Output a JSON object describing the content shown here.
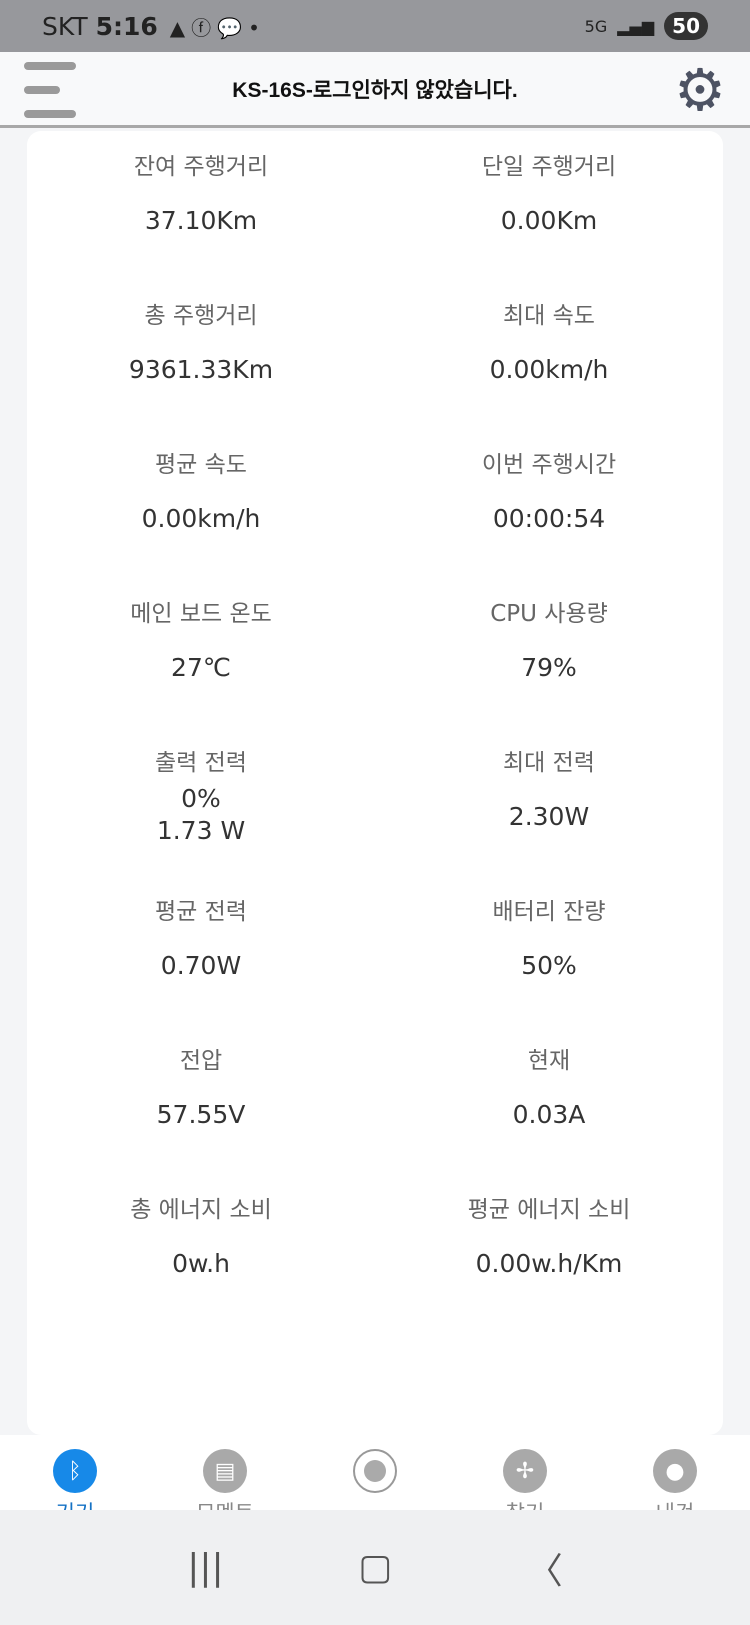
{
  "status_bar": {
    "carrier": "SKT",
    "time": "5:16",
    "network": "5G",
    "battery": "50"
  },
  "header": {
    "title": "KS-16S-로그인하지 않았습니다."
  },
  "stats": [
    {
      "label": "잔여 주행거리",
      "value": "37.10Km"
    },
    {
      "label": "단일 주행거리",
      "value": "0.00Km"
    },
    {
      "label": "총 주행거리",
      "value": "9361.33Km"
    },
    {
      "label": "최대 속도",
      "value": "0.00km/h"
    },
    {
      "label": "평균 속도",
      "value": "0.00km/h"
    },
    {
      "label": "이번 주행시간",
      "value": "00:00:54"
    },
    {
      "label": "메인 보드 온도",
      "value": "27℃"
    },
    {
      "label": "CPU 사용량",
      "value": "79%"
    },
    {
      "label": "출력 전력",
      "value": "0%",
      "value2": "1.73 W"
    },
    {
      "label": "최대 전력",
      "value": "2.30W"
    },
    {
      "label": "평균 전력",
      "value": "0.70W"
    },
    {
      "label": "배터리 잔량",
      "value": "50%"
    },
    {
      "label": "전압",
      "value": "57.55V"
    },
    {
      "label": "현재",
      "value": "0.03A"
    },
    {
      "label": "총 에너지 소비",
      "value": "0w.h"
    },
    {
      "label": "평균 에너지 소비",
      "value": "0.00w.h/Km"
    }
  ],
  "bottom_nav": [
    {
      "label": "기기",
      "icon": "bluetooth-icon",
      "active": true
    },
    {
      "label": "모멘트",
      "icon": "chat-icon"
    },
    {
      "label": "",
      "icon": "record-icon"
    },
    {
      "label": "찾기",
      "icon": "fan-icon"
    },
    {
      "label": "내것",
      "icon": "person-icon"
    }
  ],
  "colors": {
    "accent": "#1789e8"
  }
}
